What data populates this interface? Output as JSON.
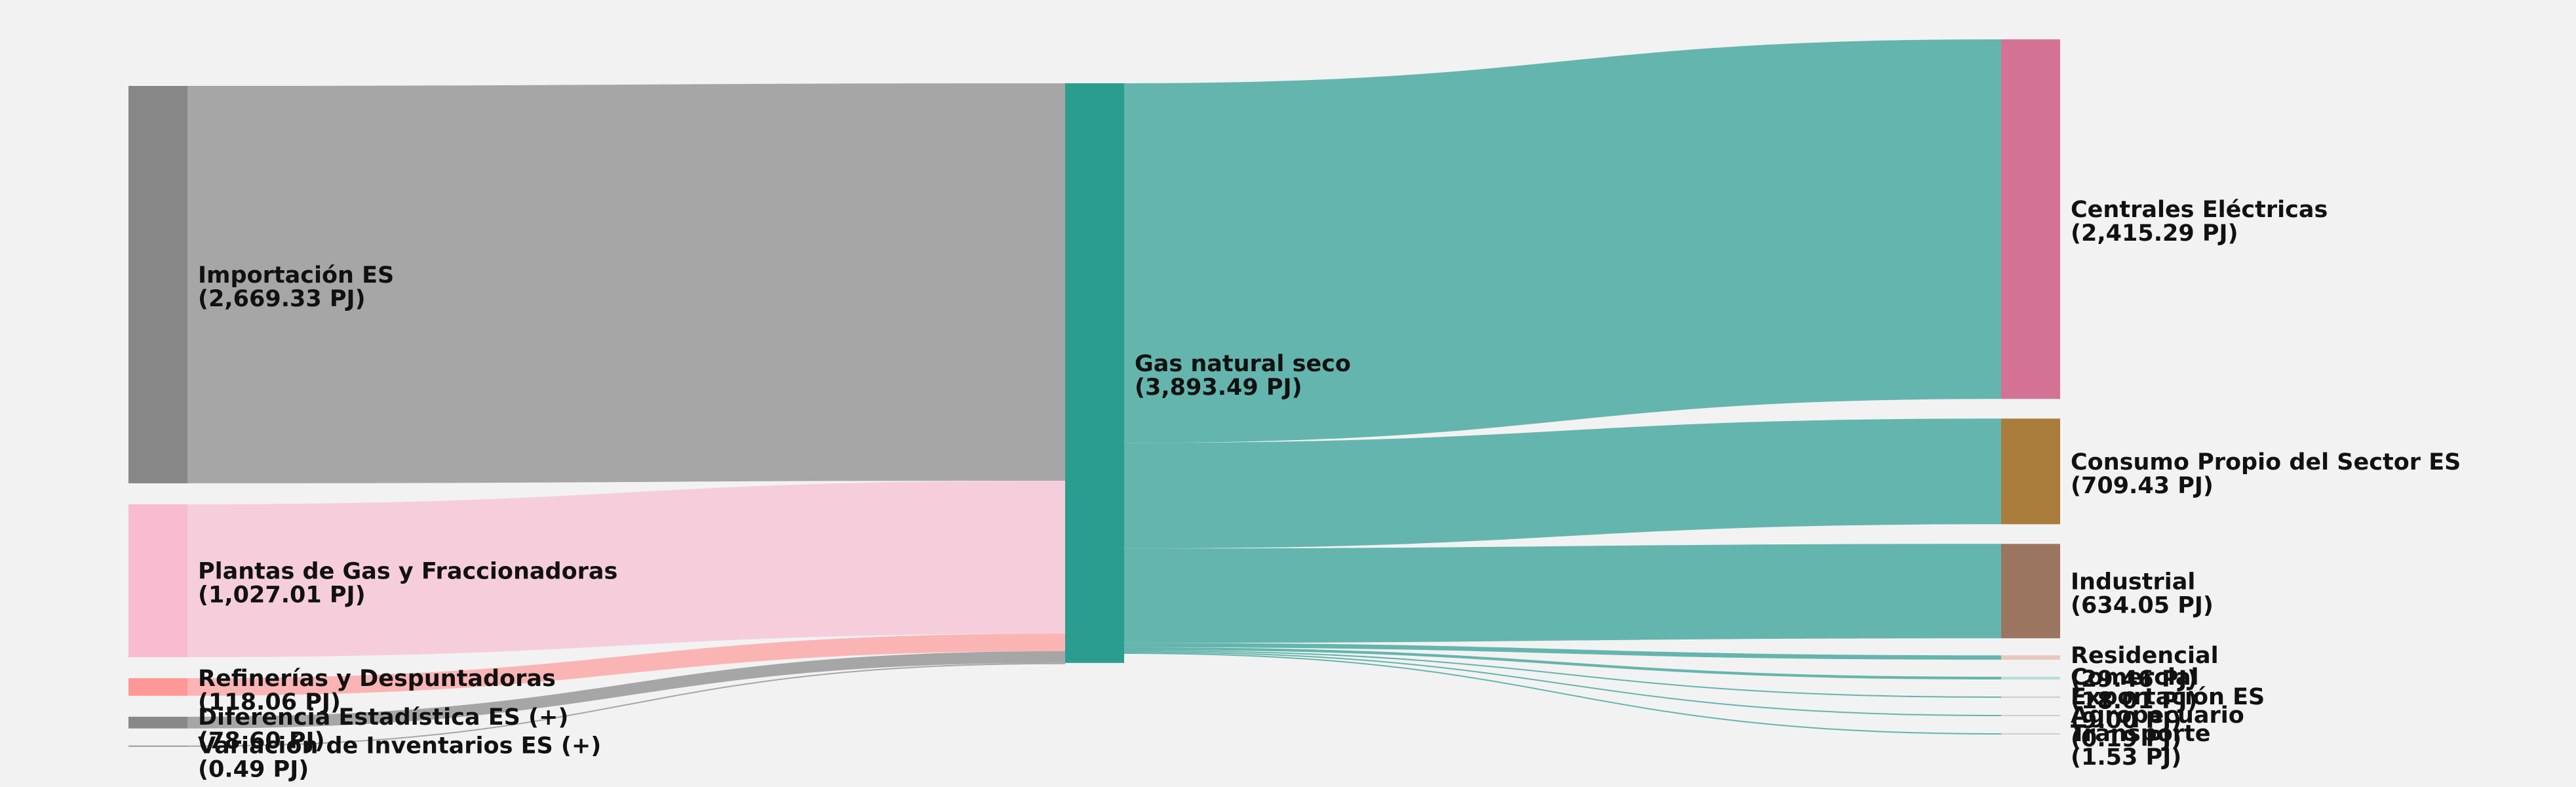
{
  "chart_data": {
    "type": "sankey",
    "unit": "PJ",
    "nodes": [
      {
        "id": "importacion",
        "name": "Importación ES",
        "value": 2669.33,
        "value_label": "(2,669.33 PJ)",
        "color": "#878787",
        "column": 0
      },
      {
        "id": "plantas",
        "name": "Plantas de Gas y Fraccionadoras",
        "value": 1027.01,
        "value_label": "(1,027.01 PJ)",
        "color": "#f8bbd0",
        "column": 0
      },
      {
        "id": "refinerias",
        "name": "Refinerías y Despuntadoras",
        "value": 118.06,
        "value_label": "(118.06 PJ)",
        "color": "#ff9796",
        "column": 0
      },
      {
        "id": "diferencia",
        "name": "Diferencia Estadística ES (+)",
        "value": 78.6,
        "value_label": "(78.60 PJ)",
        "color": "#888888",
        "column": 0
      },
      {
        "id": "variacion",
        "name": "Variación de Inventarios ES (+)",
        "value": 0.49,
        "value_label": "(0.49 PJ)",
        "color": "#999999",
        "column": 0
      },
      {
        "id": "gas",
        "name": "Gas natural seco",
        "value": 3893.49,
        "value_label": "(3,893.49 PJ)",
        "color": "#2a9d8f",
        "column": 1
      },
      {
        "id": "centrales",
        "name": "Centrales Eléctricas",
        "value": 2415.29,
        "value_label": "(2,415.29 PJ)",
        "color": "#d47295",
        "column": 2
      },
      {
        "id": "consumo",
        "name": "Consumo Propio del Sector ES",
        "value": 709.43,
        "value_label": "(709.43 PJ)",
        "color": "#a97c3c",
        "column": 2
      },
      {
        "id": "industrial",
        "name": "Industrial",
        "value": 634.05,
        "value_label": "(634.05 PJ)",
        "color": "#9c7560",
        "column": 2
      },
      {
        "id": "residencial",
        "name": "Residencial",
        "value": 29.46,
        "value_label": "(29.46 PJ)",
        "color": "#e7c8bb",
        "column": 2
      },
      {
        "id": "comercial",
        "name": "Comercial",
        "value": 18.01,
        "value_label": "(18.01 PJ)",
        "color": "#b9ddd8",
        "column": 2
      },
      {
        "id": "exportacion",
        "name": "Exportación ES",
        "value": 9.0,
        "value_label": "(9.00 PJ)",
        "color": "#c8cfcf",
        "column": 2
      },
      {
        "id": "agropecuario",
        "name": "Agropecuario",
        "value": 0.19,
        "value_label": "(0.19 PJ)",
        "color": "#cfcfcf",
        "column": 2
      },
      {
        "id": "transporte",
        "name": "Transporte",
        "value": 1.53,
        "value_label": "(1.53 PJ)",
        "color": "#cfcfcf",
        "column": 2
      }
    ],
    "links": [
      {
        "source": "importacion",
        "target": "gas",
        "value": 2669.33,
        "color": "#a6a6a6"
      },
      {
        "source": "plantas",
        "target": "gas",
        "value": 1027.01,
        "color": "#f6cedb"
      },
      {
        "source": "refinerias",
        "target": "gas",
        "value": 118.06,
        "color": "#fbb4b4"
      },
      {
        "source": "diferencia",
        "target": "gas",
        "value": 78.6,
        "color": "#a6a6a6"
      },
      {
        "source": "variacion",
        "target": "gas",
        "value": 0.49,
        "color": "#a6a6a6"
      },
      {
        "source": "gas",
        "target": "centrales",
        "value": 2415.29,
        "color": "#64b5ad"
      },
      {
        "source": "gas",
        "target": "consumo",
        "value": 709.43,
        "color": "#64b5ad"
      },
      {
        "source": "gas",
        "target": "industrial",
        "value": 634.05,
        "color": "#64b5ad"
      },
      {
        "source": "gas",
        "target": "residencial",
        "value": 29.46,
        "color": "#64b5ad"
      },
      {
        "source": "gas",
        "target": "comercial",
        "value": 18.01,
        "color": "#64b5ad"
      },
      {
        "source": "gas",
        "target": "exportacion",
        "value": 9.0,
        "color": "#64b5ad"
      },
      {
        "source": "gas",
        "target": "agropecuario",
        "value": 0.19,
        "color": "#64b5ad"
      },
      {
        "source": "gas",
        "target": "transporte",
        "value": 1.53,
        "color": "#64b5ad"
      }
    ]
  }
}
